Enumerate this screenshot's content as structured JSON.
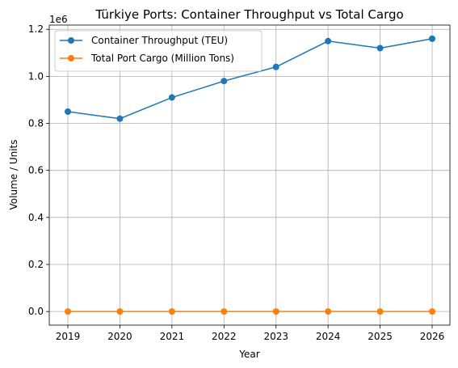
{
  "chart_data": {
    "type": "line",
    "title": "Türkiye Ports: Container Throughput vs Total Cargo",
    "xlabel": "Year",
    "ylabel": "Volume / Units",
    "y_offset_label": "1e6",
    "x": [
      "2019",
      "2020",
      "2021",
      "2022",
      "2023",
      "2024",
      "2025",
      "2026"
    ],
    "series": [
      {
        "name": "Container Throughput (TEU)",
        "values": [
          850000,
          820000,
          910000,
          980000,
          1040000,
          1150000,
          1120000,
          1160000
        ],
        "color": "#1f77b4"
      },
      {
        "name": "Total Port Cargo (Million Tons)",
        "values": [
          0,
          0,
          0,
          0,
          0,
          0,
          0,
          0
        ],
        "color": "#ff7f0e"
      }
    ],
    "yticks": [
      "0.0",
      "0.2",
      "0.4",
      "0.6",
      "0.8",
      "1.0",
      "1.2"
    ],
    "ytick_values": [
      0,
      200000,
      400000,
      600000,
      800000,
      1000000,
      1200000
    ],
    "ylim": [
      -58000,
      1218000
    ],
    "grid": true,
    "legend_position": "top-left"
  }
}
